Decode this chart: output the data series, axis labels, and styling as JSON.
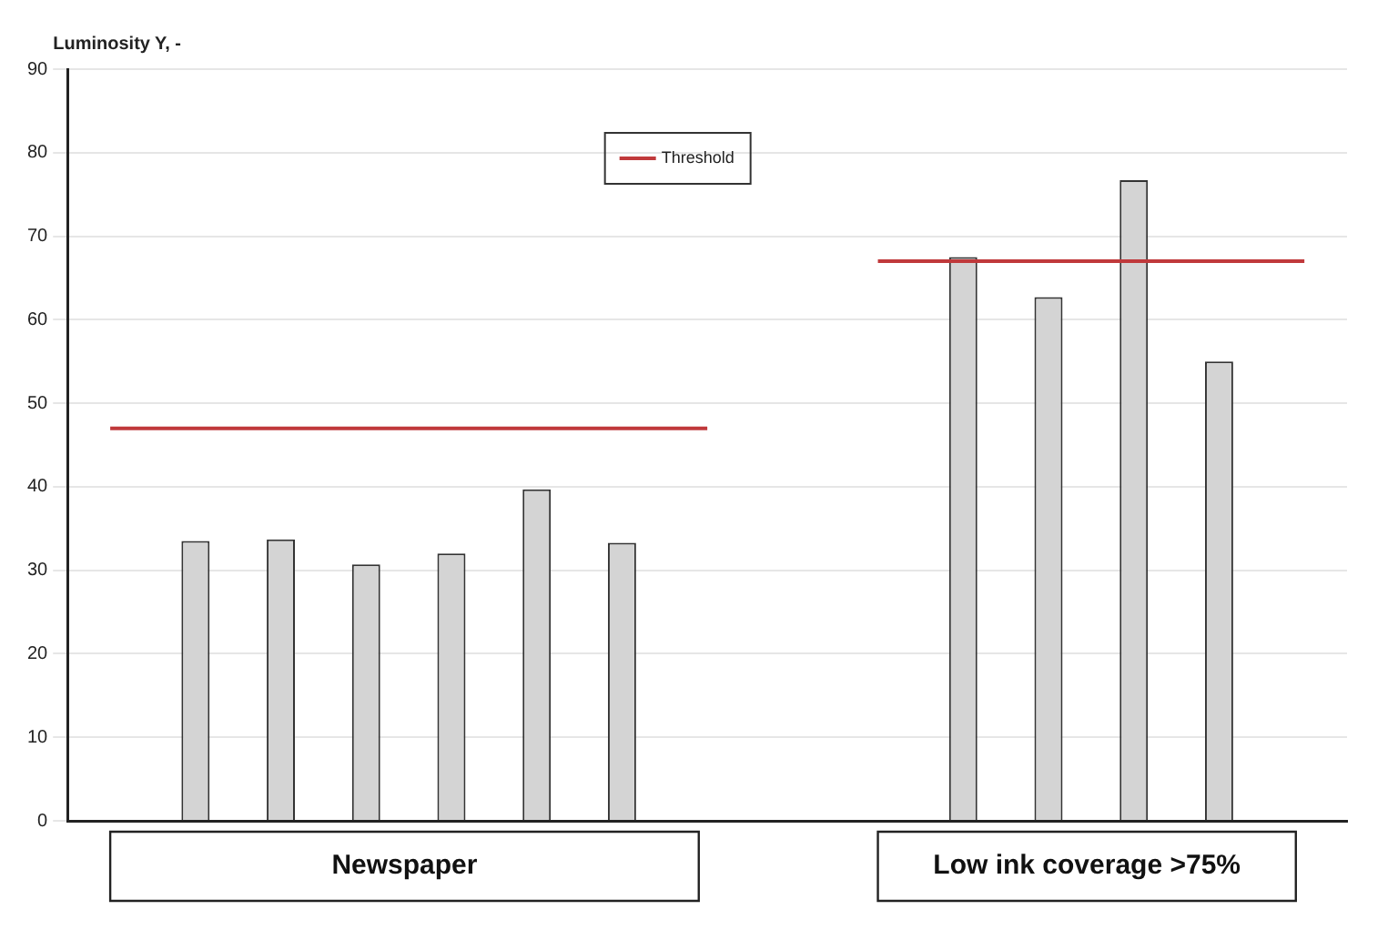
{
  "chart_data": {
    "type": "bar",
    "ylabel": "Luminosity Y, -",
    "categories": [
      null,
      null,
      null,
      null,
      null,
      null,
      null,
      null,
      null,
      null,
      null,
      null,
      null,
      null,
      null
    ],
    "series": [
      {
        "color": "#d4d4d4",
        "values": [
          null,
          33.5,
          33.7,
          30.7,
          32,
          39.7,
          33.3,
          null,
          null,
          null,
          67.5,
          62.7,
          76.7,
          55,
          null
        ]
      },
      {
        "type": "line",
        "name": "Threshold",
        "color": "#c0393b",
        "values": [
          47,
          47,
          47,
          47,
          47,
          47,
          47,
          47,
          null,
          67,
          67,
          67,
          67,
          67,
          67
        ]
      }
    ],
    "ylim": [
      0,
      90
    ],
    "yticks": [
      0,
      10,
      20,
      30,
      40,
      50,
      60,
      70,
      80,
      90
    ],
    "grid": "y",
    "legend": "top",
    "marker": "none",
    "annotations": [
      "Newspaper",
      "Low ink coverage >75%"
    ]
  }
}
